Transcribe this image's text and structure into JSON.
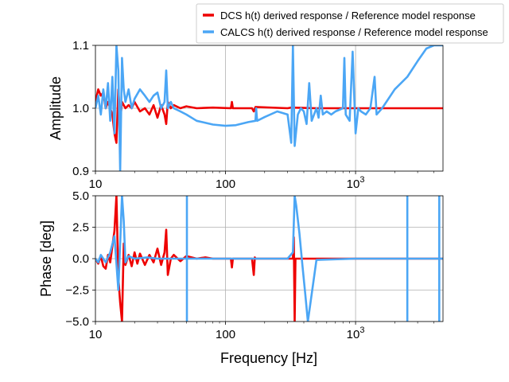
{
  "chart_data": {
    "type": "line",
    "xscale": "log",
    "xlim": [
      10,
      4700
    ],
    "xlabel": "Frequency [Hz]",
    "x_ticks": [
      "10",
      "100",
      "10^3"
    ],
    "legend": {
      "placement": "top-right",
      "entries": [
        {
          "name": "DCS h(t) derived response / Reference model response",
          "color": "#ee0000"
        },
        {
          "name": "CALCS h(t) derived response / Reference model response",
          "color": "#4ba6f5"
        }
      ]
    },
    "panels": [
      {
        "ylabel": "Amplitude",
        "ylim": [
          0.9,
          1.1
        ],
        "y_ticks": [
          "0.9",
          "1.0",
          "1.1"
        ],
        "grid": true,
        "series": [
          {
            "name": "DCS h(t) derived response / Reference model response",
            "color": "#ee0000",
            "points": [
              [
                10,
                1.01
              ],
              [
                10.5,
                1.03
              ],
              [
                11,
                1.02
              ],
              [
                11.5,
                1.025
              ],
              [
                12,
                1.0
              ],
              [
                12.5,
                1.01
              ],
              [
                13,
                1.0
              ],
              [
                13.5,
                0.99
              ],
              [
                14,
                0.96
              ],
              [
                14.5,
                0.945
              ],
              [
                15,
                1.03
              ],
              [
                15.5,
                0.98
              ],
              [
                16,
                1.01
              ],
              [
                17,
                1.0
              ],
              [
                18,
                1.005
              ],
              [
                19,
                1.0
              ],
              [
                20,
                1.01
              ],
              [
                22,
                0.995
              ],
              [
                24,
                1.0
              ],
              [
                26,
                0.99
              ],
              [
                28,
                1.005
              ],
              [
                30,
                0.985
              ],
              [
                32,
                1.005
              ],
              [
                34,
                0.99
              ],
              [
                35,
                0.975
              ],
              [
                36,
                1.01
              ],
              [
                38,
                1.0
              ],
              [
                40,
                1.005
              ],
              [
                45,
                1.0
              ],
              [
                50,
                1.003
              ],
              [
                60,
                1.0
              ],
              [
                80,
                1.001
              ],
              [
                110,
                1.0
              ],
              [
                112,
                1.01
              ],
              [
                114,
                1.0
              ],
              [
                160,
                1.0
              ],
              [
                165,
                0.995
              ],
              [
                170,
                1.002
              ],
              [
                300,
                1.0
              ],
              [
                320,
                1.001
              ],
              [
                500,
                1.0
              ],
              [
                800,
                1.0
              ],
              [
                1000,
                1.0
              ],
              [
                2000,
                1.0
              ],
              [
                4700,
                1.0
              ]
            ]
          },
          {
            "name": "CALCS h(t) derived response / Reference model response",
            "color": "#4ba6f5",
            "points": [
              [
                10,
                1.0
              ],
              [
                10.5,
                1.02
              ],
              [
                11,
                0.99
              ],
              [
                11.5,
                1.03
              ],
              [
                12,
                1.0
              ],
              [
                12.5,
                1.04
              ],
              [
                13,
                0.98
              ],
              [
                13.5,
                1.05
              ],
              [
                14,
                0.96
              ],
              [
                14.5,
                1.1
              ],
              [
                15,
                1.06
              ],
              [
                15.5,
                0.9
              ],
              [
                16,
                1.08
              ],
              [
                16.5,
                1.03
              ],
              [
                17,
                1.01
              ],
              [
                18,
                1.03
              ],
              [
                19,
                1.0
              ],
              [
                20,
                1.015
              ],
              [
                22,
                1.03
              ],
              [
                24,
                1.02
              ],
              [
                26,
                1.01
              ],
              [
                28,
                1.02
              ],
              [
                30,
                1.025
              ],
              [
                32,
                1.0
              ],
              [
                34,
                1.01
              ],
              [
                35,
                1.06
              ],
              [
                36,
                1.0
              ],
              [
                38,
                1.01
              ],
              [
                40,
                1.0
              ],
              [
                45,
                0.995
              ],
              [
                50,
                0.99
              ],
              [
                60,
                0.98
              ],
              [
                80,
                0.974
              ],
              [
                100,
                0.972
              ],
              [
                120,
                0.973
              ],
              [
                150,
                0.978
              ],
              [
                170,
                0.98
              ],
              [
                172,
                1.0
              ],
              [
                175,
                0.98
              ],
              [
                200,
                0.986
              ],
              [
                250,
                0.995
              ],
              [
                300,
                0.99
              ],
              [
                320,
                0.945
              ],
              [
                330,
                1.1
              ],
              [
                340,
                0.94
              ],
              [
                360,
                0.99
              ],
              [
                380,
                1.0
              ],
              [
                400,
                0.995
              ],
              [
                420,
                0.975
              ],
              [
                440,
                1.04
              ],
              [
                460,
                0.98
              ],
              [
                500,
                1.0
              ],
              [
                520,
                0.985
              ],
              [
                540,
                1.02
              ],
              [
                560,
                0.99
              ],
              [
                600,
                0.995
              ],
              [
                650,
                0.99
              ],
              [
                700,
                0.995
              ],
              [
                800,
                1.0
              ],
              [
                820,
                1.08
              ],
              [
                840,
                0.99
              ],
              [
                900,
                0.98
              ],
              [
                950,
                1.09
              ],
              [
                1000,
                0.96
              ],
              [
                1050,
                1.0
              ],
              [
                1100,
                0.995
              ],
              [
                1200,
                0.99
              ],
              [
                1300,
                1.0
              ],
              [
                1400,
                1.05
              ],
              [
                1450,
                0.99
              ],
              [
                1600,
                1.0
              ],
              [
                2000,
                1.03
              ],
              [
                2500,
                1.05
              ],
              [
                3000,
                1.075
              ],
              [
                3500,
                1.095
              ],
              [
                4000,
                1.1
              ],
              [
                4700,
                1.1
              ]
            ]
          }
        ]
      },
      {
        "ylabel": "Phase [deg]",
        "ylim": [
          -5,
          5
        ],
        "y_ticks": [
          "-5.0",
          "-2.5",
          "0.0",
          "2.5",
          "5.0"
        ],
        "grid": true,
        "series": [
          {
            "name": "DCS h(t) derived response / Reference model response",
            "color": "#ee0000",
            "points": [
              [
                10,
                0.0
              ],
              [
                10.5,
                -0.4
              ],
              [
                11,
                0.2
              ],
              [
                11.5,
                -0.6
              ],
              [
                12,
                -0.8
              ],
              [
                12.5,
                0.3
              ],
              [
                13,
                -0.3
              ],
              [
                13.5,
                1.0
              ],
              [
                14,
                2.2
              ],
              [
                14.5,
                5.0
              ],
              [
                15,
                -1.5
              ],
              [
                15.5,
                -3.5
              ],
              [
                16,
                -5.0
              ],
              [
                16.5,
                1.2
              ],
              [
                17,
                -0.5
              ],
              [
                18,
                0.3
              ],
              [
                19,
                -0.6
              ],
              [
                20,
                0.5
              ],
              [
                21,
                -0.4
              ],
              [
                22,
                0.4
              ],
              [
                24,
                -0.5
              ],
              [
                26,
                0.3
              ],
              [
                28,
                -0.3
              ],
              [
                30,
                0.8
              ],
              [
                32,
                -0.5
              ],
              [
                34,
                0.5
              ],
              [
                35,
                2.3
              ],
              [
                36,
                -1.3
              ],
              [
                38,
                0.0
              ],
              [
                40,
                0.3
              ],
              [
                45,
                -0.2
              ],
              [
                50,
                0.2
              ],
              [
                60,
                0.0
              ],
              [
                70,
                0.1
              ],
              [
                80,
                0.0
              ],
              [
                110,
                0.0
              ],
              [
                112,
                -0.7
              ],
              [
                114,
                0.0
              ],
              [
                160,
                0.0
              ],
              [
                165,
                -1.3
              ],
              [
                168,
                0.1
              ],
              [
                170,
                0.0
              ],
              [
                300,
                0.0
              ],
              [
                330,
                0.0
              ],
              [
                335,
                1.7
              ],
              [
                340,
                -5.0
              ],
              [
                345,
                0.0
              ],
              [
                400,
                0.0
              ],
              [
                600,
                0.0
              ],
              [
                1000,
                0.0
              ],
              [
                2000,
                0.0
              ],
              [
                4700,
                0.0
              ]
            ]
          },
          {
            "name": "CALCS h(t) derived response / Reference model response",
            "color": "#4ba6f5",
            "points": [
              [
                10,
                0.0
              ],
              [
                10.5,
                -0.3
              ],
              [
                11,
                0.3
              ],
              [
                12,
                -0.3
              ],
              [
                13,
                0.5
              ],
              [
                14,
                1.8
              ],
              [
                15,
                -2.5
              ],
              [
                16,
                5.0
              ],
              [
                16.5,
                3.0
              ],
              [
                17,
                -0.3
              ],
              [
                18,
                0.2
              ],
              [
                20,
                0.0
              ],
              [
                25,
                0.1
              ],
              [
                30,
                0.0
              ],
              [
                40,
                0.0
              ],
              [
                50,
                0.0
              ],
              [
                55,
                0.0
              ],
              [
                80,
                0.0
              ],
              [
                100,
                0.0
              ],
              [
                200,
                0.0
              ],
              [
                300,
                0.0
              ],
              [
                330,
                0.5
              ],
              [
                340,
                5.0
              ],
              [
                350,
                4.2
              ],
              [
                370,
                2.0
              ],
              [
                390,
                -0.5
              ],
              [
                410,
                -2.8
              ],
              [
                430,
                -5.0
              ],
              [
                500,
                -0.1
              ],
              [
                1000,
                0.0
              ],
              [
                2000,
                0.0
              ],
              [
                4700,
                0.0
              ]
            ]
          }
        ],
        "phase_wraps": [
          50.5,
          2500,
          4400
        ]
      }
    ]
  }
}
